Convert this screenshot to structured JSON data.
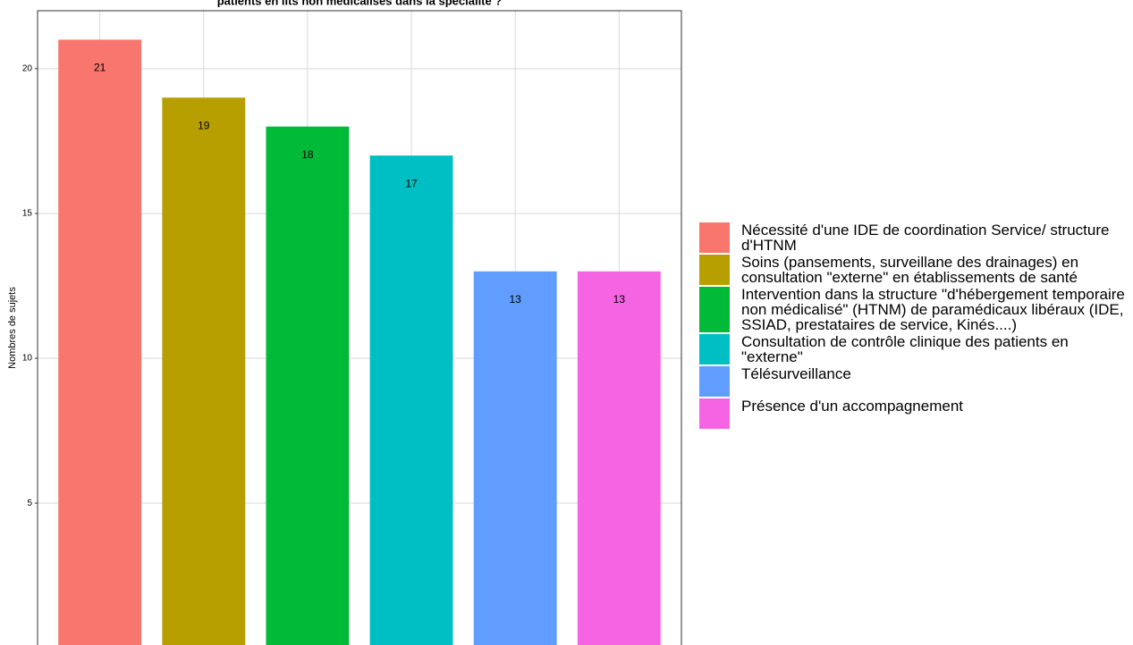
{
  "chart_data": {
    "type": "bar",
    "title": "patients en lits non médicalisés dans la spécialité ?",
    "y_label": "Nombres de sujets",
    "categories": [
      "Nécessité d'une IDE de coordination Service/ structure d'HTNM",
      "Soins (pansements, surveillane des drainages) en consultation \"externe\" en établissements de santé",
      "Intervention dans la structure \"d'hébergement temporaire non médicalisé\" (HTNM) de paramédicaux libéraux (IDE, SSIAD, prestataires de service, Kinés....)",
      "Consultation de contrôle clinique des patients en \"externe\"",
      "Télésurveillance",
      "Présence d'un accompagnement"
    ],
    "values": [
      21,
      19,
      18,
      17,
      13,
      13
    ],
    "colors": [
      "#f8766d",
      "#b79f00",
      "#00ba38",
      "#00bfc4",
      "#619cff",
      "#f564e3"
    ],
    "ylim": [
      0.1,
      22
    ],
    "yticks": [
      5,
      10,
      15,
      20
    ],
    "grid": true,
    "legend": "right"
  }
}
